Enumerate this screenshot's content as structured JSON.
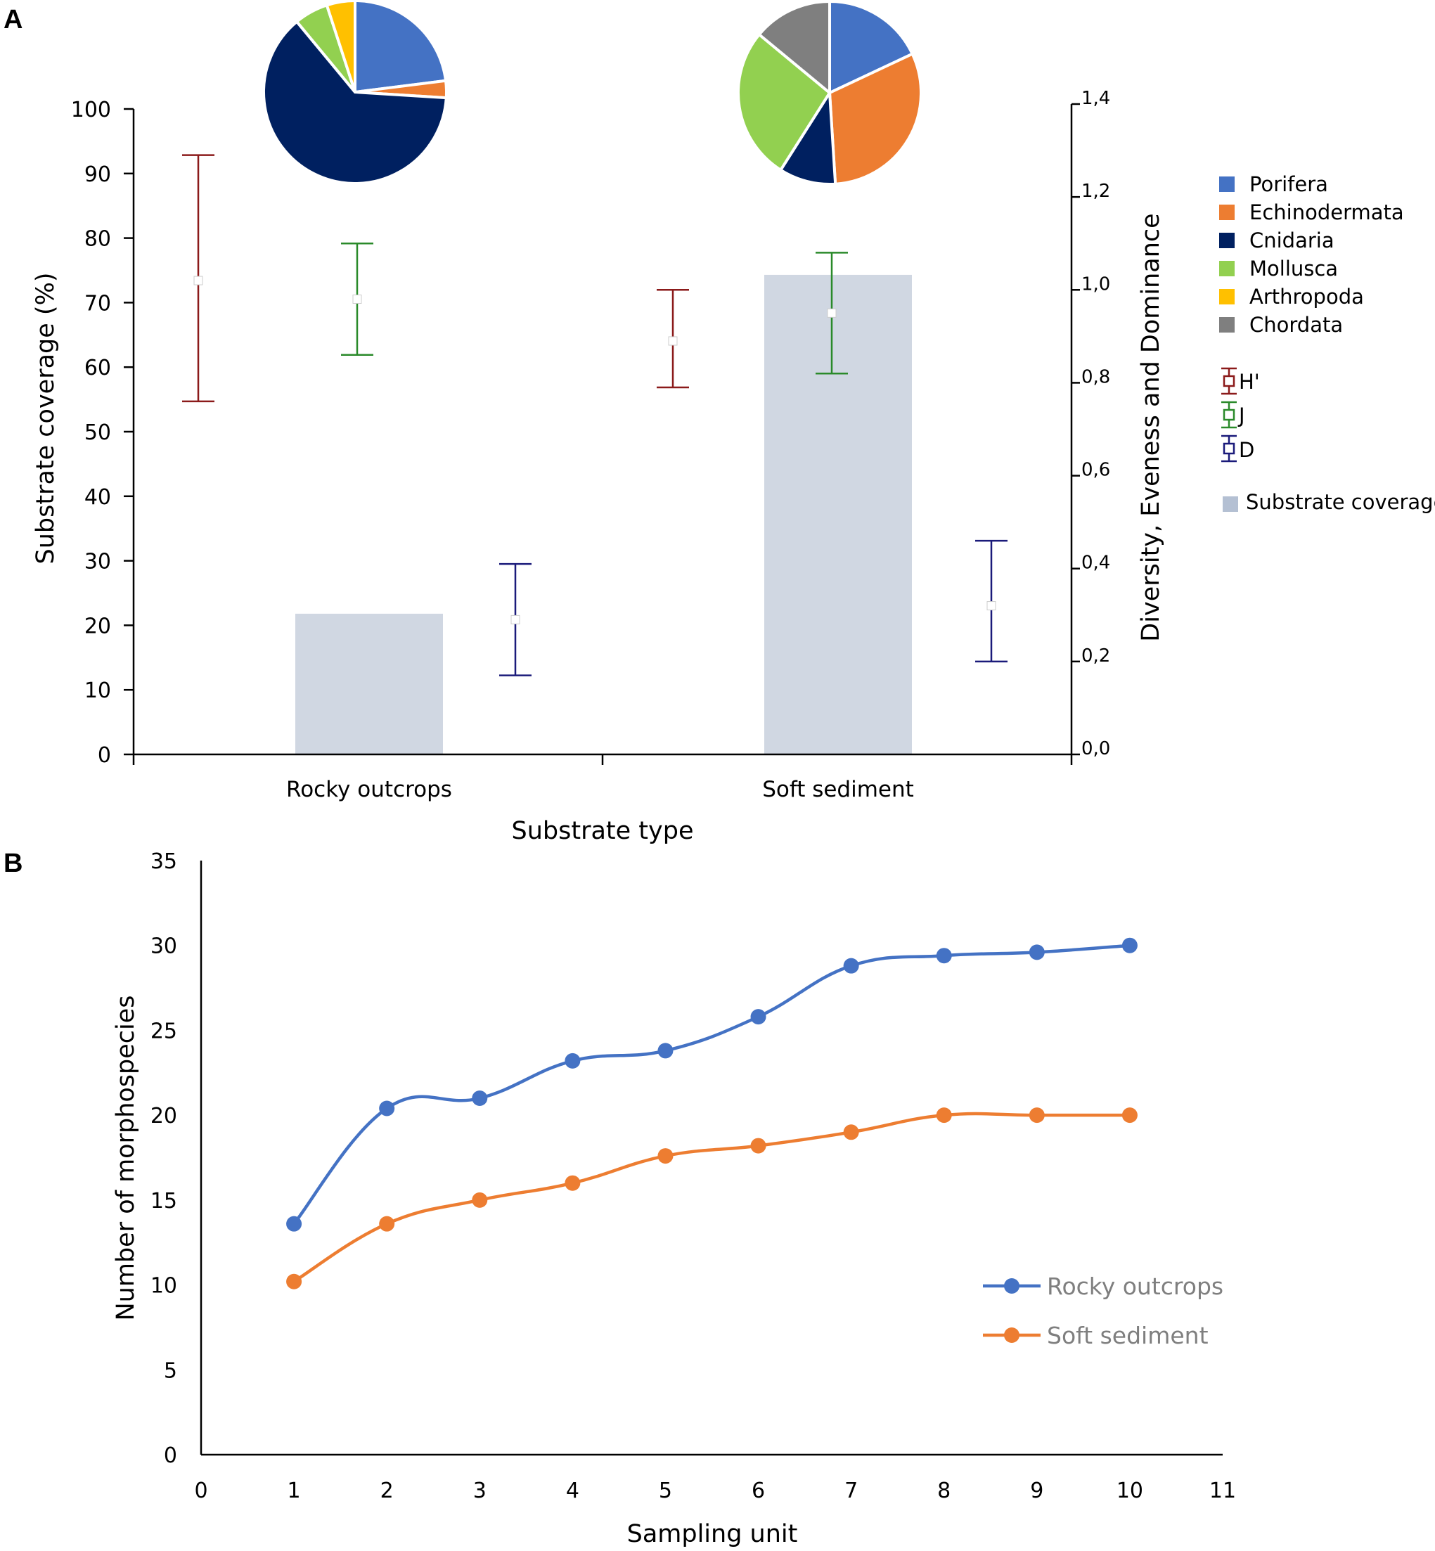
{
  "panel_labels": {
    "a": "A",
    "b": "B"
  },
  "colors": {
    "bar": "#d0d7e2",
    "h": "#8b1a1a",
    "j": "#2a8a2a",
    "d": "#1a1a7a",
    "rocky": "#4472c4",
    "soft": "#ed7d31",
    "axis": "#000000"
  },
  "chart_data": [
    {
      "type": "bar",
      "title": "",
      "xlabel": "Substrate type",
      "ylabel": "Substrate coverage (%)",
      "y2label": "Diversity, Eveness and Dominance",
      "categories": [
        "Rocky outcrops",
        "Soft sediment"
      ],
      "ylim": [
        0,
        100
      ],
      "y_ticks": [
        "0",
        "10",
        "20",
        "30",
        "40",
        "50",
        "60",
        "70",
        "80",
        "90",
        "100"
      ],
      "y2lim": [
        0,
        1.4
      ],
      "y2_ticks": [
        "0,0",
        "0,2",
        "0,4",
        "0,6",
        "0,8",
        "1,0",
        "1,2",
        "1,4"
      ],
      "series": [
        {
          "name": "Substrate coverage",
          "axis": "left",
          "values": [
            21.8,
            74.3
          ]
        },
        {
          "name": "H'",
          "axis": "right",
          "mean": [
            1.02,
            0.89
          ],
          "low": [
            0.76,
            0.79
          ],
          "high": [
            1.29,
            1.0
          ]
        },
        {
          "name": "J",
          "axis": "right",
          "mean": [
            0.98,
            0.95
          ],
          "low": [
            0.86,
            0.82
          ],
          "high": [
            1.1,
            1.08
          ]
        },
        {
          "name": "D",
          "axis": "right",
          "mean": [
            0.29,
            0.32
          ],
          "low": [
            0.17,
            0.2
          ],
          "high": [
            0.41,
            0.46
          ]
        }
      ],
      "pies": [
        {
          "category": "Rocky outcrops",
          "values": [
            23,
            3,
            63,
            6,
            5,
            0
          ]
        },
        {
          "category": "Soft sediment",
          "values": [
            18,
            31,
            10,
            27,
            0,
            14
          ]
        }
      ],
      "pie_legend": [
        {
          "label": "Porifera",
          "color": "#4472c4"
        },
        {
          "label": "Echinodermata",
          "color": "#ed7d31"
        },
        {
          "label": "Cnidaria",
          "color": "#002060"
        },
        {
          "label": "Mollusca",
          "color": "#92d050"
        },
        {
          "label": "Arthropoda",
          "color": "#ffc000"
        },
        {
          "label": "Chordata",
          "color": "#7f7f7f"
        }
      ],
      "errbar_legend": [
        "H'",
        "J",
        "D"
      ],
      "bar_legend": "Substrate coverage"
    },
    {
      "type": "line",
      "title": "",
      "xlabel": "Sampling unit",
      "ylabel": "Number of morphospecies",
      "xlim": [
        0,
        11
      ],
      "ylim": [
        0,
        35
      ],
      "x_ticks": [
        "0",
        "1",
        "2",
        "3",
        "4",
        "5",
        "6",
        "7",
        "8",
        "9",
        "10",
        "11"
      ],
      "y_ticks": [
        "0",
        "5",
        "10",
        "15",
        "20",
        "25",
        "30",
        "35"
      ],
      "x": [
        1,
        2,
        3,
        4,
        5,
        6,
        7,
        8,
        9,
        10
      ],
      "series": [
        {
          "name": "Rocky outcrops",
          "values": [
            13.6,
            20.4,
            21.0,
            23.2,
            23.8,
            25.8,
            28.8,
            29.4,
            29.6,
            30.0
          ]
        },
        {
          "name": "Soft sediment",
          "values": [
            10.2,
            13.6,
            15.0,
            16.0,
            17.6,
            18.2,
            19.0,
            20.0,
            20.0,
            20.0
          ]
        }
      ],
      "legend_position": "bottom-right"
    }
  ]
}
